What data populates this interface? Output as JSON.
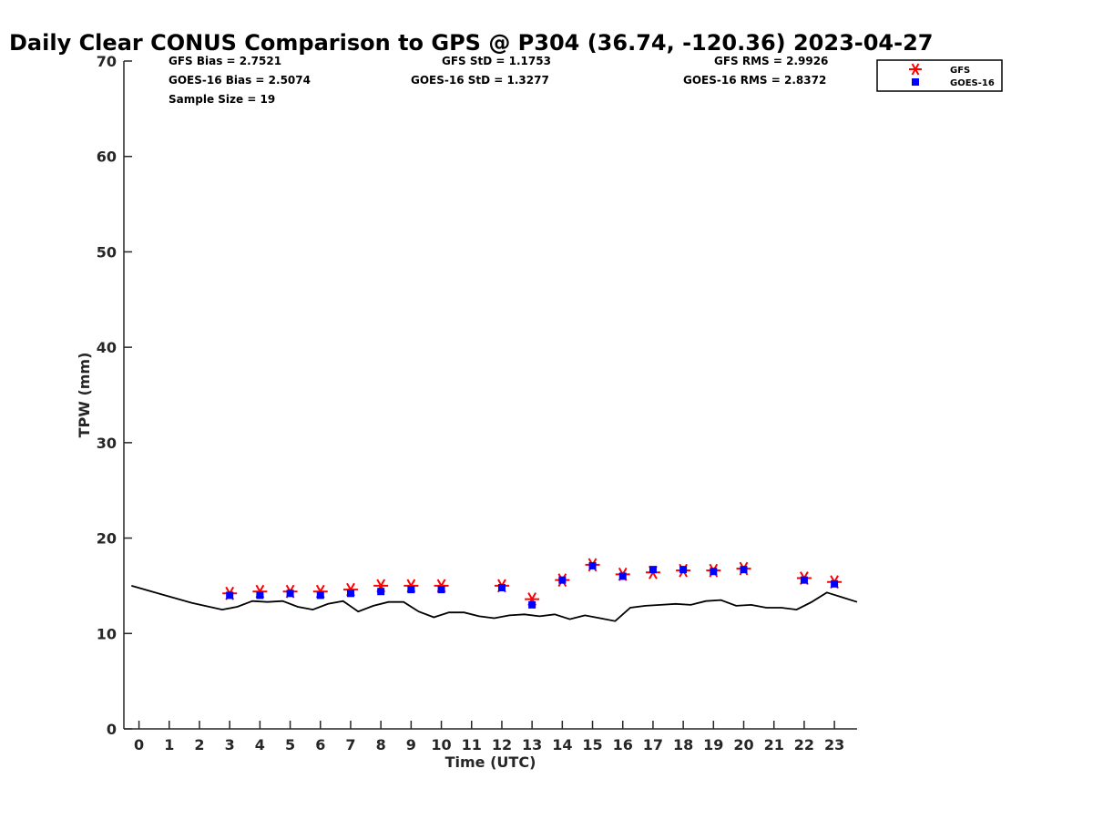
{
  "title": "Daily Clear CONUS Comparison to GPS @ P304 (36.74, -120.36) 2023-04-27",
  "stats": {
    "gfs_bias": "GFS Bias = 2.7521",
    "goes_bias": "GOES-16 Bias = 2.5074",
    "sample_size": "Sample Size = 19",
    "gfs_std": "GFS StD = 1.1753",
    "goes_std": "GOES-16 StD = 1.3277",
    "gfs_rms": "GFS RMS = 2.9926",
    "goes_rms": "GOES-16 RMS = 2.8372"
  },
  "legend": [
    {
      "name": "GFS",
      "marker": "asterisk",
      "color": "#ff0000"
    },
    {
      "name": "GOES-16",
      "marker": "square",
      "color": "#0000ff"
    }
  ],
  "chart_data": {
    "type": "scatter",
    "title": "Daily Clear CONUS Comparison to GPS @ P304 (36.74, -120.36) 2023-04-27",
    "xlabel": "Time (UTC)",
    "ylabel": "TPW (mm)",
    "xlim": [
      -0.5,
      23.75
    ],
    "ylim": [
      0,
      70
    ],
    "xticks": [
      0,
      1,
      2,
      3,
      4,
      5,
      6,
      7,
      8,
      9,
      10,
      11,
      12,
      13,
      14,
      15,
      16,
      17,
      18,
      19,
      20,
      21,
      22,
      23
    ],
    "yticks": [
      0,
      10,
      20,
      30,
      40,
      50,
      60,
      70
    ],
    "grid": false,
    "legend_position": "top-right",
    "series": [
      {
        "name": "GFS",
        "type": "scatter",
        "marker": "asterisk",
        "color": "#ff0000",
        "x": [
          3,
          4,
          5,
          6,
          7,
          8,
          9,
          10,
          12,
          13,
          14,
          15,
          16,
          17,
          18,
          19,
          20,
          22,
          23
        ],
        "y": [
          14.2,
          14.4,
          14.4,
          14.4,
          14.6,
          15.0,
          15.0,
          15.0,
          15.0,
          13.6,
          15.6,
          17.2,
          16.2,
          16.4,
          16.6,
          16.6,
          16.8,
          15.8,
          15.4
        ]
      },
      {
        "name": "GOES-16",
        "type": "scatter",
        "marker": "square",
        "color": "#0000ff",
        "x": [
          3,
          4,
          5,
          6,
          7,
          8,
          9,
          10,
          12,
          13,
          14,
          15,
          16,
          17,
          18,
          19,
          20,
          22,
          23
        ],
        "y": [
          14.0,
          14.0,
          14.2,
          14.0,
          14.2,
          14.4,
          14.6,
          14.6,
          14.8,
          13.0,
          15.6,
          17.1,
          16.0,
          16.7,
          16.7,
          16.5,
          16.7,
          15.6,
          15.2
        ]
      },
      {
        "type": "line",
        "color": "#000000",
        "x": [
          -0.25,
          0.75,
          1.75,
          2.75,
          3.25,
          3.75,
          4.25,
          4.75,
          5.25,
          5.75,
          6.25,
          6.75,
          7.25,
          7.75,
          8.25,
          8.75,
          9.25,
          9.75,
          10.25,
          10.75,
          11.25,
          11.75,
          12.25,
          12.75,
          13.25,
          13.75,
          14.25,
          14.75,
          15.25,
          15.75,
          16.25,
          16.75,
          17.25,
          17.75,
          18.25,
          18.75,
          19.25,
          19.75,
          20.25,
          20.75,
          21.25,
          21.75,
          22.25,
          22.75,
          23.25,
          23.75
        ],
        "y": [
          15.0,
          14.1,
          13.2,
          12.5,
          12.8,
          13.4,
          13.3,
          13.4,
          12.8,
          12.5,
          13.1,
          13.4,
          12.3,
          12.9,
          13.3,
          13.3,
          12.3,
          11.7,
          12.2,
          12.2,
          11.8,
          11.6,
          11.9,
          12.0,
          11.8,
          12.0,
          11.5,
          11.9,
          11.6,
          11.3,
          12.7,
          12.9,
          13.0,
          13.1,
          13.0,
          13.4,
          13.5,
          12.9,
          13.0,
          12.7,
          12.7,
          12.5,
          13.3,
          14.3,
          13.8,
          13.3
        ]
      }
    ]
  }
}
